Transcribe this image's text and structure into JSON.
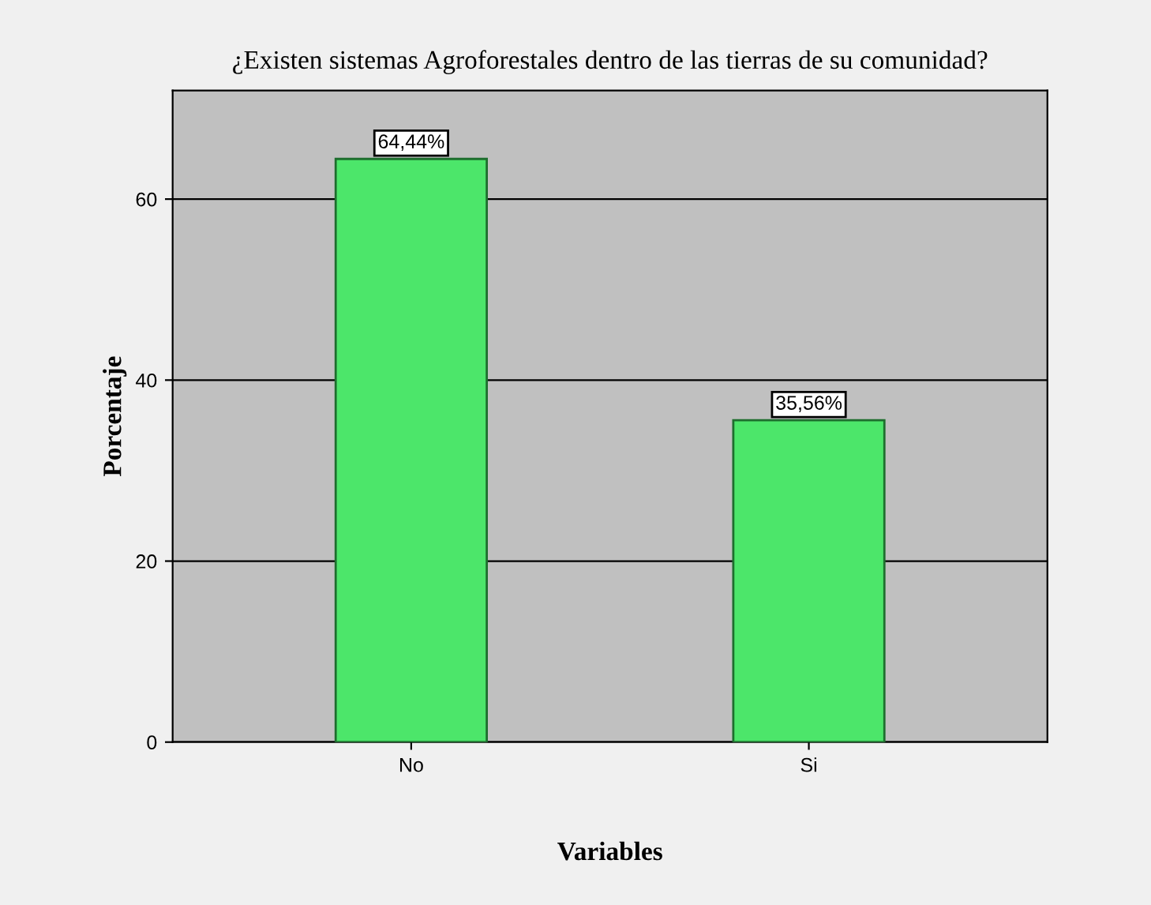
{
  "chart_data": {
    "type": "bar",
    "title": "¿Existen sistemas Agroforestales dentro de las tierras de su comunidad?",
    "xlabel": "Variables",
    "ylabel": "Porcentaje",
    "categories": [
      "No",
      "Si"
    ],
    "values": [
      64.44,
      35.56
    ],
    "value_labels": [
      "64,44%",
      "35,56%"
    ],
    "color": "#4ce66a",
    "ylim": [
      0,
      72
    ],
    "yticks": [
      0,
      20,
      40,
      60
    ],
    "grid": "y"
  }
}
